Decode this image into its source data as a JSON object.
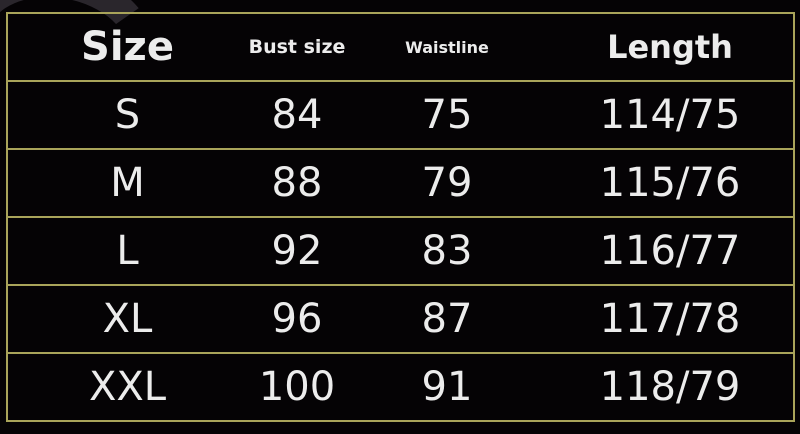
{
  "headers": [
    "Size",
    "Bust size",
    "Waistline",
    "Length"
  ],
  "rows": [
    [
      "S",
      "84",
      "75",
      "114/75"
    ],
    [
      "M",
      "88",
      "79",
      "115/76"
    ],
    [
      "L",
      "92",
      "83",
      "116/77"
    ],
    [
      "XL",
      "96",
      "87",
      "117/78"
    ],
    [
      "XXL",
      "100",
      "91",
      "118/79"
    ]
  ],
  "colors": {
    "background": "#050305",
    "grid": "#a9a45a",
    "text": "#ececec"
  }
}
